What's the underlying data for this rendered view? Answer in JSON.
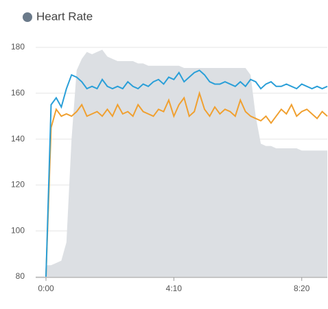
{
  "chart_data": {
    "type": "line",
    "title": "Heart Rate",
    "x": [
      0,
      10,
      20,
      30,
      40,
      50,
      60,
      70,
      80,
      90,
      100,
      110,
      120,
      130,
      140,
      150,
      160,
      170,
      180,
      190,
      200,
      210,
      220,
      230,
      240,
      250,
      260,
      270,
      280,
      290,
      300,
      310,
      320,
      330,
      340,
      350,
      360,
      370,
      380,
      390,
      400,
      410,
      420,
      430,
      440,
      450,
      460,
      470,
      480,
      490,
      500,
      510,
      520,
      530,
      540,
      550
    ],
    "series": [
      {
        "color": "#dcdfe3",
        "area": true,
        "values": [
          85,
          85,
          86,
          87,
          95,
          140,
          170,
          175,
          178,
          177,
          178,
          179,
          176,
          175,
          174,
          174,
          174,
          174,
          173,
          173,
          172,
          172,
          172,
          172,
          172,
          172,
          172,
          171,
          171,
          171,
          171,
          171,
          171,
          171,
          171,
          171,
          171,
          171,
          171,
          171,
          168,
          150,
          138,
          137,
          137,
          136,
          136,
          136,
          136,
          136,
          135,
          135,
          135,
          135,
          135,
          135
        ]
      },
      {
        "color": "#f0a030",
        "values": [
          80,
          145,
          153,
          150,
          151,
          150,
          152,
          155,
          150,
          151,
          152,
          150,
          153,
          150,
          155,
          151,
          152,
          150,
          155,
          152,
          151,
          150,
          153,
          152,
          157,
          150,
          155,
          158,
          150,
          152,
          160,
          153,
          150,
          154,
          151,
          153,
          152,
          150,
          157,
          152,
          150,
          149,
          148,
          150,
          147,
          150,
          153,
          151,
          155,
          150,
          152,
          153,
          151,
          149,
          152,
          150
        ]
      },
      {
        "color": "#2a9fd8",
        "values": [
          80,
          155,
          158,
          154,
          162,
          168,
          167,
          165,
          162,
          163,
          162,
          166,
          163,
          162,
          163,
          162,
          165,
          163,
          162,
          164,
          163,
          165,
          166,
          164,
          167,
          166,
          169,
          165,
          167,
          169,
          170,
          168,
          165,
          164,
          164,
          165,
          164,
          163,
          165,
          163,
          166,
          165,
          162,
          164,
          165,
          163,
          163,
          164,
          163,
          162,
          164,
          163,
          162,
          163,
          162,
          163
        ]
      }
    ],
    "xlim": [
      0,
      550
    ],
    "xticks": [
      {
        "value": 0,
        "label": "0:00"
      },
      {
        "value": 250,
        "label": "4:10"
      },
      {
        "value": 500,
        "label": "8:20"
      }
    ],
    "ylim": [
      80,
      180
    ],
    "yticks": [
      80,
      100,
      120,
      140,
      160,
      180
    ],
    "grid": true
  }
}
